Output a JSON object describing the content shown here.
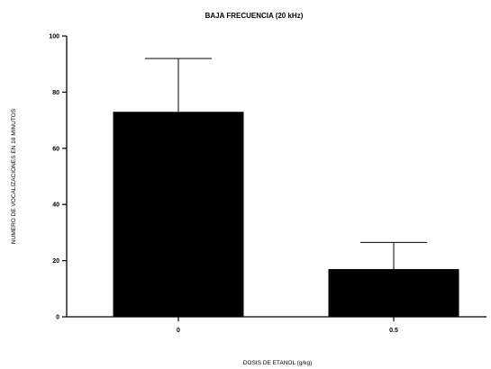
{
  "chart_data": {
    "type": "bar",
    "title": "BAJA FRECUENCIA (20 kHz)",
    "xlabel": "DOSIS DE ETANOL  (g/kg)",
    "ylabel": "NUMERO DE VOCALIZACIONES EN 10 MINUTOS",
    "categories": [
      "0",
      "0.5"
    ],
    "values": [
      73,
      17
    ],
    "error_upper": [
      92,
      26.5
    ],
    "ylim": [
      0,
      100
    ],
    "yticks": [
      0,
      20,
      40,
      60,
      80,
      100
    ],
    "bar_color": "#000000",
    "grid": false
  }
}
